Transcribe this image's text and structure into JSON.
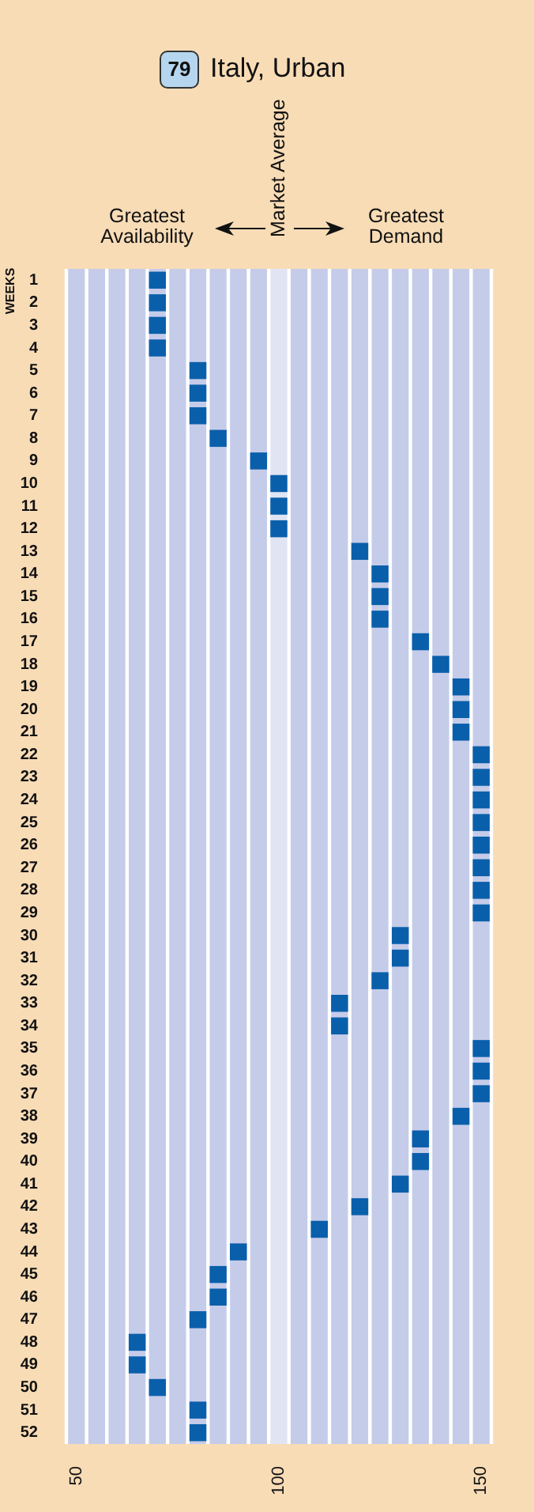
{
  "chart_data": {
    "type": "scatter",
    "title": "Italy, Urban",
    "ylabel": "WEEKS",
    "annotations": [
      "79",
      "Greatest Availability",
      "Greatest Demand"
    ],
    "x": [
      70,
      70,
      70,
      70,
      80,
      80,
      80,
      85,
      95,
      100,
      100,
      100,
      120,
      125,
      125,
      125,
      135,
      140,
      145,
      145,
      145,
      150,
      150,
      150,
      150,
      150,
      150,
      150,
      150,
      130,
      130,
      125,
      115,
      115,
      150,
      150,
      150,
      145,
      135,
      135,
      130,
      120,
      110,
      90,
      85,
      85,
      80,
      65,
      65,
      70,
      80,
      80
    ],
    "values": [
      1,
      2,
      3,
      4,
      5,
      6,
      7,
      8,
      9,
      10,
      11,
      12,
      13,
      14,
      15,
      16,
      17,
      18,
      19,
      20,
      21,
      22,
      23,
      24,
      25,
      26,
      27,
      28,
      29,
      30,
      31,
      32,
      33,
      34,
      35,
      36,
      37,
      38,
      39,
      40,
      41,
      42,
      43,
      44,
      45,
      46,
      47,
      48,
      49,
      50,
      51,
      52
    ],
    "color": "#0a5fab",
    "marker": "square",
    "grid": "x",
    "xlim": [
      47.5,
      152.5
    ],
    "xticks": [
      {
        "value": 47.5,
        "label": null
      },
      50,
      {
        "value": 52.5,
        "label": null
      },
      {
        "value": 57.5,
        "label": null
      },
      {
        "value": 62.5,
        "label": null
      },
      {
        "value": 67.5,
        "label": null
      },
      {
        "value": 72.5,
        "label": null
      },
      {
        "value": 77.5,
        "label": null
      },
      {
        "value": 82.5,
        "label": null
      },
      {
        "value": 87.5,
        "label": null
      },
      {
        "value": 92.5,
        "label": null
      },
      {
        "value": 97.5,
        "label": null
      },
      100,
      {
        "value": 102.5,
        "label": null
      },
      {
        "value": 107.5,
        "label": null
      },
      {
        "value": 112.5,
        "label": null
      },
      {
        "value": 117.5,
        "label": null
      },
      {
        "value": 122.5,
        "label": null
      },
      {
        "value": 127.5,
        "label": null
      },
      {
        "value": 132.5,
        "label": null
      },
      {
        "value": 137.5,
        "label": null
      },
      {
        "value": 142.5,
        "label": null
      },
      {
        "value": 147.5,
        "label": null
      },
      150,
      {
        "value": 152.5,
        "label": null
      }
    ],
    "ylim": [
      52.5,
      0.5
    ],
    "yticks": [
      1,
      2,
      3,
      4,
      5,
      6,
      7,
      8,
      9,
      10,
      11,
      12,
      13,
      14,
      15,
      16,
      17,
      18,
      19,
      20,
      21,
      22,
      23,
      24,
      25,
      26,
      27,
      28,
      29,
      30,
      31,
      32,
      33,
      34,
      35,
      36,
      37,
      38,
      39,
      40,
      41,
      42,
      43,
      44,
      45,
      46,
      47,
      48,
      49,
      50,
      51,
      52
    ],
    "ref_lines": [
      {
        "axis": "x",
        "value": 100,
        "label": "Market Average",
        "color": "#e0e4f3"
      }
    ]
  }
}
